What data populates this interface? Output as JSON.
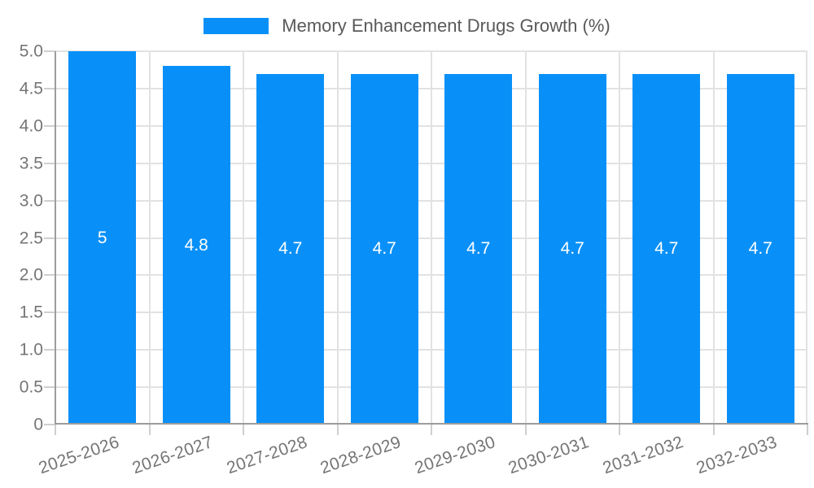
{
  "chart_data": {
    "type": "bar",
    "title": "Memory Enhancement Drugs Growth (%)",
    "legend": {
      "position": "top",
      "label": "Memory Enhancement Drugs Growth (%)"
    },
    "categories": [
      "2025-2026",
      "2026-2027",
      "2027-2028",
      "2028-2029",
      "2029-2030",
      "2030-2031",
      "2031-2032",
      "2032-2033"
    ],
    "values": [
      5,
      4.8,
      4.7,
      4.7,
      4.7,
      4.7,
      4.7,
      4.7
    ],
    "value_labels": [
      "5",
      "4.8",
      "4.7",
      "4.7",
      "4.7",
      "4.7",
      "4.7",
      "4.7"
    ],
    "y_ticks": [
      "0",
      "0.5",
      "1.0",
      "1.5",
      "2.0",
      "2.5",
      "3.0",
      "3.5",
      "4.0",
      "4.5",
      "5.0"
    ],
    "ylim": [
      0,
      5
    ],
    "xlabel": "",
    "ylabel": "",
    "grid": true,
    "legend_position": "top"
  },
  "style": {
    "bar": "#0990f8",
    "grid": "#e2e2e2",
    "axis": "#9c9c9c",
    "tick": "#cfcfcf",
    "tick_text": "#757575",
    "legend_text": "#595959",
    "bar_label": "#ffffff",
    "background": "#ffffff"
  }
}
